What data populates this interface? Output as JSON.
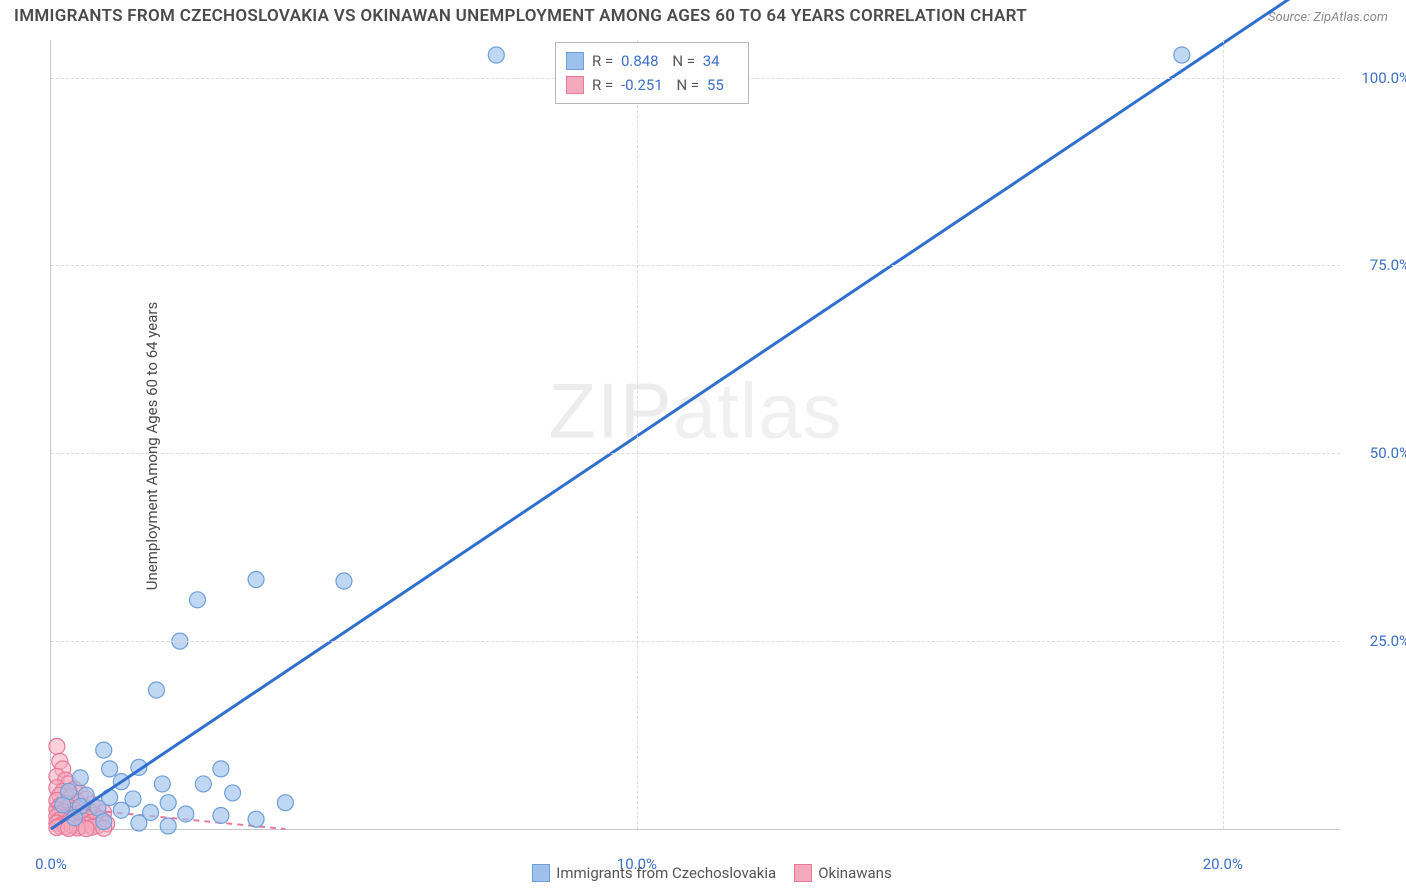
{
  "title": "IMMIGRANTS FROM CZECHOSLOVAKIA VS OKINAWAN UNEMPLOYMENT AMONG AGES 60 TO 64 YEARS CORRELATION CHART",
  "source": "Source: ZipAtlas.com",
  "watermark": "ZIPatlas",
  "y_axis_label": "Unemployment Among Ages 60 to 64 years",
  "chart": {
    "type": "scatter",
    "background_color": "#ffffff",
    "grid_color": "#dcdcdc",
    "axis_color": "#c8c8c8",
    "xlim": [
      0,
      22
    ],
    "ylim": [
      0,
      105
    ],
    "x_ticks": [
      0,
      10,
      20
    ],
    "x_tick_labels": [
      "0.0%",
      "10.0%",
      "20.0%"
    ],
    "y_ticks": [
      25,
      50,
      75,
      100
    ],
    "y_tick_labels": [
      "25.0%",
      "50.0%",
      "75.0%",
      "100.0%"
    ],
    "tick_label_color": "#3b6fc9",
    "tick_fontsize": 15,
    "series": [
      {
        "name": "Immigrants from Czechoslovakia",
        "color_fill": "#9ec1ec",
        "color_stroke": "#6f9fd8",
        "marker_radius": 8,
        "marker_opacity": 0.65,
        "trend_line": {
          "x1": 0,
          "y1": 0,
          "x2": 22,
          "y2": 115,
          "color": "#2f6fd0",
          "width": 3,
          "dash": "none"
        },
        "R": "0.848",
        "N": "34",
        "points": [
          [
            7.6,
            103
          ],
          [
            19.3,
            103
          ],
          [
            3.5,
            33.2
          ],
          [
            5.0,
            33.0
          ],
          [
            2.5,
            30.5
          ],
          [
            2.2,
            25.0
          ],
          [
            1.8,
            18.5
          ],
          [
            0.9,
            10.5
          ],
          [
            1.0,
            8.0
          ],
          [
            1.5,
            8.2
          ],
          [
            2.9,
            8.0
          ],
          [
            0.5,
            6.8
          ],
          [
            1.2,
            6.3
          ],
          [
            1.9,
            6.0
          ],
          [
            2.6,
            6.0
          ],
          [
            3.1,
            4.8
          ],
          [
            0.3,
            5.0
          ],
          [
            0.6,
            4.5
          ],
          [
            1.0,
            4.2
          ],
          [
            1.4,
            4.0
          ],
          [
            2.0,
            3.5
          ],
          [
            4.0,
            3.5
          ],
          [
            0.2,
            3.2
          ],
          [
            0.5,
            3.0
          ],
          [
            0.8,
            2.8
          ],
          [
            1.2,
            2.5
          ],
          [
            1.7,
            2.2
          ],
          [
            2.3,
            2.0
          ],
          [
            2.9,
            1.8
          ],
          [
            3.5,
            1.3
          ],
          [
            0.4,
            1.5
          ],
          [
            0.9,
            1.0
          ],
          [
            1.5,
            0.8
          ],
          [
            2.0,
            0.4
          ]
        ]
      },
      {
        "name": "Okinawans",
        "color_fill": "#f5a9bd",
        "color_stroke": "#e77a9a",
        "marker_radius": 8,
        "marker_opacity": 0.55,
        "trend_line": {
          "x1": 0,
          "y1": 3.0,
          "x2": 4.0,
          "y2": 0.0,
          "color": "#e77a9a",
          "width": 2,
          "dash": "6,5"
        },
        "R": "-0.251",
        "N": "55",
        "points": [
          [
            0.1,
            11.0
          ],
          [
            0.15,
            9.0
          ],
          [
            0.2,
            8.0
          ],
          [
            0.1,
            7.0
          ],
          [
            0.25,
            6.5
          ],
          [
            0.3,
            6.0
          ],
          [
            0.1,
            5.5
          ],
          [
            0.4,
            5.3
          ],
          [
            0.2,
            5.0
          ],
          [
            0.5,
            4.8
          ],
          [
            0.15,
            4.5
          ],
          [
            0.35,
            4.3
          ],
          [
            0.6,
            4.0
          ],
          [
            0.1,
            3.8
          ],
          [
            0.45,
            3.6
          ],
          [
            0.25,
            3.4
          ],
          [
            0.7,
            3.3
          ],
          [
            0.15,
            3.1
          ],
          [
            0.55,
            3.0
          ],
          [
            0.3,
            2.9
          ],
          [
            0.8,
            2.8
          ],
          [
            0.1,
            2.6
          ],
          [
            0.4,
            2.5
          ],
          [
            0.65,
            2.4
          ],
          [
            0.2,
            2.3
          ],
          [
            0.9,
            2.2
          ],
          [
            0.5,
            2.1
          ],
          [
            0.15,
            2.0
          ],
          [
            0.35,
            1.9
          ],
          [
            0.75,
            1.8
          ],
          [
            0.1,
            1.7
          ],
          [
            0.6,
            1.6
          ],
          [
            0.25,
            1.5
          ],
          [
            0.45,
            1.4
          ],
          [
            0.85,
            1.3
          ],
          [
            0.15,
            1.2
          ],
          [
            0.55,
            1.1
          ],
          [
            0.3,
            1.0
          ],
          [
            0.7,
            0.9
          ],
          [
            0.1,
            0.8
          ],
          [
            0.4,
            0.75
          ],
          [
            0.95,
            0.7
          ],
          [
            0.2,
            0.6
          ],
          [
            0.6,
            0.55
          ],
          [
            0.35,
            0.5
          ],
          [
            0.8,
            0.45
          ],
          [
            0.15,
            0.4
          ],
          [
            0.5,
            0.35
          ],
          [
            0.25,
            0.3
          ],
          [
            0.7,
            0.25
          ],
          [
            0.1,
            0.2
          ],
          [
            0.45,
            0.15
          ],
          [
            0.9,
            0.1
          ],
          [
            0.3,
            0.08
          ],
          [
            0.6,
            0.05
          ]
        ]
      }
    ]
  },
  "legend_top": {
    "rows": [
      {
        "swatch_fill": "#9ec1ec",
        "swatch_stroke": "#6f9fd8",
        "R_label": "R =",
        "R_val": "0.848",
        "N_label": "N =",
        "N_val": "34"
      },
      {
        "swatch_fill": "#f5a9bd",
        "swatch_stroke": "#e77a9a",
        "R_label": "R =",
        "R_val": "-0.251",
        "N_label": "N =",
        "N_val": "55"
      }
    ]
  },
  "legend_bottom": {
    "items": [
      {
        "swatch_fill": "#9ec1ec",
        "swatch_stroke": "#6f9fd8",
        "label": "Immigrants from Czechoslovakia"
      },
      {
        "swatch_fill": "#f5a9bd",
        "swatch_stroke": "#e77a9a",
        "label": "Okinawans"
      }
    ]
  }
}
